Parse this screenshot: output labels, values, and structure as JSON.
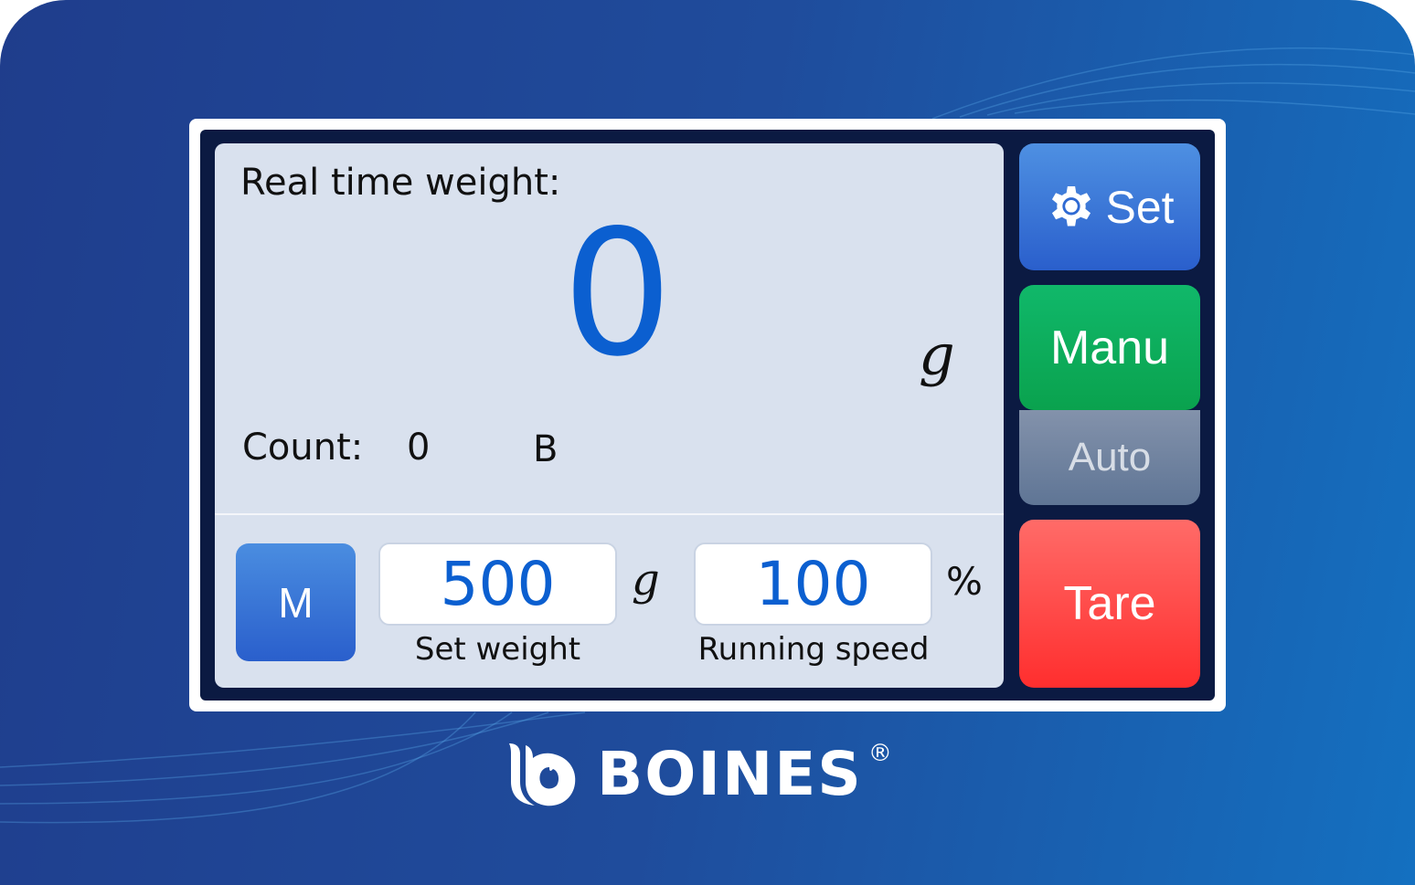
{
  "display": {
    "title": "Real time weight:",
    "weight_value": "0",
    "weight_unit": "g",
    "count_label": "Count:",
    "count_value": "0",
    "count_unit": "B"
  },
  "controls": {
    "m_button": "M",
    "set_weight": {
      "value": "500",
      "unit": "g",
      "label": "Set weight"
    },
    "running_speed": {
      "value": "100",
      "unit": "%",
      "label": "Running speed"
    }
  },
  "side_buttons": {
    "set": {
      "label": "Set",
      "icon": "gear-icon",
      "color": "#2a5fcc"
    },
    "manu": {
      "label": "Manu",
      "color": "#0aa24e",
      "active": true
    },
    "auto": {
      "label": "Auto",
      "color": "#5f7595"
    },
    "tare": {
      "label": "Tare",
      "color": "#ff2e2e"
    }
  },
  "brand": {
    "name": "BOINES",
    "registered": "®"
  },
  "colors": {
    "accent": "#0b5fd0",
    "panel": "#d9e1ee",
    "background": "#1f4c9c"
  }
}
